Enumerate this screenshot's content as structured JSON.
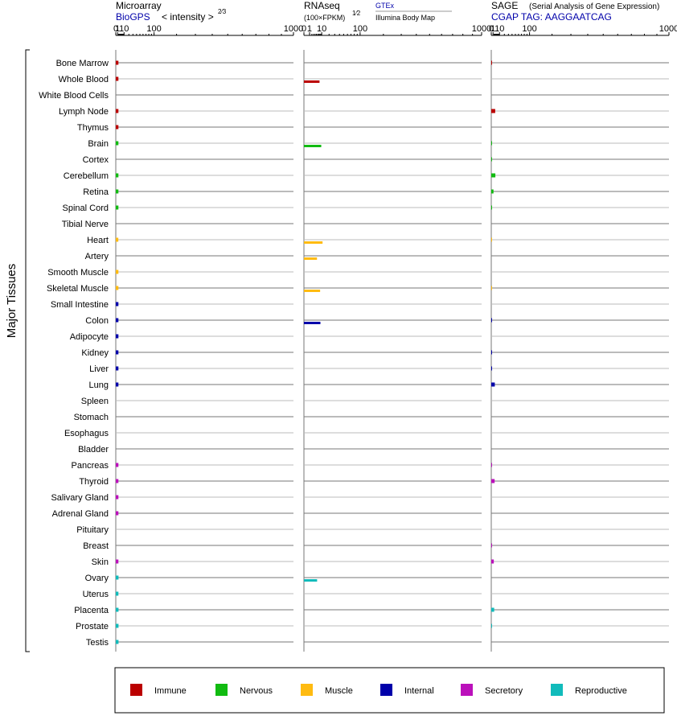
{
  "chart_data": {
    "type": "bar",
    "y_axis_label": "Major Tissues",
    "tissues": [
      "Bone Marrow",
      "Whole Blood",
      "White Blood Cells",
      "Lymph Node",
      "Thymus",
      "Brain",
      "Cortex",
      "Cerebellum",
      "Retina",
      "Spinal Cord",
      "Tibial Nerve",
      "Heart",
      "Artery",
      "Smooth Muscle",
      "Skeletal Muscle",
      "Small Intestine",
      "Colon",
      "Adipocyte",
      "Kidney",
      "Liver",
      "Lung",
      "Spleen",
      "Stomach",
      "Esophagus",
      "Bladder",
      "Pancreas",
      "Thyroid",
      "Salivary Gland",
      "Adrenal Gland",
      "Pituitary",
      "Breast",
      "Skin",
      "Ovary",
      "Uterus",
      "Placenta",
      "Prostate",
      "Testis"
    ],
    "tissue_groups": [
      "Immune",
      "Immune",
      "Immune",
      "Immune",
      "Immune",
      "Nervous",
      "Nervous",
      "Nervous",
      "Nervous",
      "Nervous",
      "Nervous",
      "Muscle",
      "Muscle",
      "Muscle",
      "Muscle",
      "Internal",
      "Internal",
      "Internal",
      "Internal",
      "Internal",
      "Internal",
      "Internal",
      "Internal",
      "Internal",
      "Internal",
      "Secretory",
      "Secretory",
      "Secretory",
      "Secretory",
      "Secretory",
      "Secretory",
      "Secretory",
      "Reproductive",
      "Reproductive",
      "Reproductive",
      "Reproductive",
      "Reproductive"
    ],
    "legend": [
      {
        "name": "Immune",
        "color": "#bb0000"
      },
      {
        "name": "Nervous",
        "color": "#11bb11"
      },
      {
        "name": "Muscle",
        "color": "#ffbb11"
      },
      {
        "name": "Internal",
        "color": "#0000aa"
      },
      {
        "name": "Secretory",
        "color": "#bb11bb"
      },
      {
        "name": "Reproductive",
        "color": "#11bbbb"
      }
    ],
    "panels": [
      {
        "title": "Microarray",
        "source": "BioGPS",
        "unit_label": "< intensity >",
        "unit_exponent": "2⁄3",
        "scale": "power-2/3",
        "ticks": [
          0,
          1,
          10,
          100,
          1000
        ],
        "xlim": [
          0,
          1000
        ],
        "series": [
          {
            "values": [
              1.8,
              1.8,
              null,
              1.8,
              1.8,
              1.8,
              null,
              1.8,
              1.8,
              1.8,
              null,
              1.7,
              null,
              1.8,
              1.8,
              1.8,
              1.8,
              1.8,
              1.8,
              1.8,
              1.8,
              null,
              null,
              null,
              null,
              1.8,
              1.8,
              1.8,
              1.8,
              null,
              null,
              1.8,
              1.9,
              1.8,
              1.9,
              1.9,
              1.9
            ]
          }
        ]
      },
      {
        "title": "RNAseq",
        "unit_label": "(100×FPKM)",
        "unit_exponent": "1⁄2",
        "source_top": "GTEx",
        "source_bottom": "Illumina Body Map",
        "scale": "sqrt",
        "ticks": [
          0,
          1,
          10,
          100,
          1000
        ],
        "xlim": [
          0,
          1000
        ],
        "series": [
          {
            "name": "GTEx",
            "values": [
              null,
              null,
              null,
              null,
              null,
              null,
              null,
              null,
              null,
              null,
              null,
              null,
              null,
              null,
              null,
              null,
              null,
              null,
              null,
              null,
              null,
              null,
              null,
              null,
              null,
              null,
              null,
              null,
              null,
              null,
              null,
              null,
              null,
              null,
              null,
              null,
              null
            ]
          },
          {
            "name": "Illumina Body Map",
            "values": [
              null,
              7.7,
              null,
              null,
              null,
              9.5,
              null,
              null,
              null,
              null,
              null,
              11,
              5.4,
              null,
              8.3,
              null,
              8.6,
              null,
              null,
              null,
              null,
              null,
              null,
              null,
              null,
              null,
              null,
              null,
              null,
              null,
              null,
              null,
              5.5,
              null,
              null,
              null,
              null
            ]
          }
        ]
      },
      {
        "title": "SAGE",
        "subtitle": "(Serial Analysis of Gene Expression)",
        "source": "CGAP  TAG: AAGGAATCAG",
        "scale": "power-2/3",
        "ticks": [
          0,
          1,
          10,
          100,
          1000
        ],
        "xlim": [
          0,
          1000
        ],
        "series": [
          {
            "values": [
              0.02,
              null,
              null,
              3.3,
              null,
              0.02,
              0.02,
              3.5,
              1.4,
              0.02,
              null,
              0.01,
              null,
              null,
              0.01,
              null,
              0.02,
              null,
              0.02,
              0.02,
              2.8,
              null,
              null,
              null,
              null,
              0.02,
              2.6,
              null,
              null,
              null,
              0.02,
              1.7,
              null,
              null,
              2.1,
              0.02,
              null
            ]
          }
        ]
      }
    ]
  }
}
